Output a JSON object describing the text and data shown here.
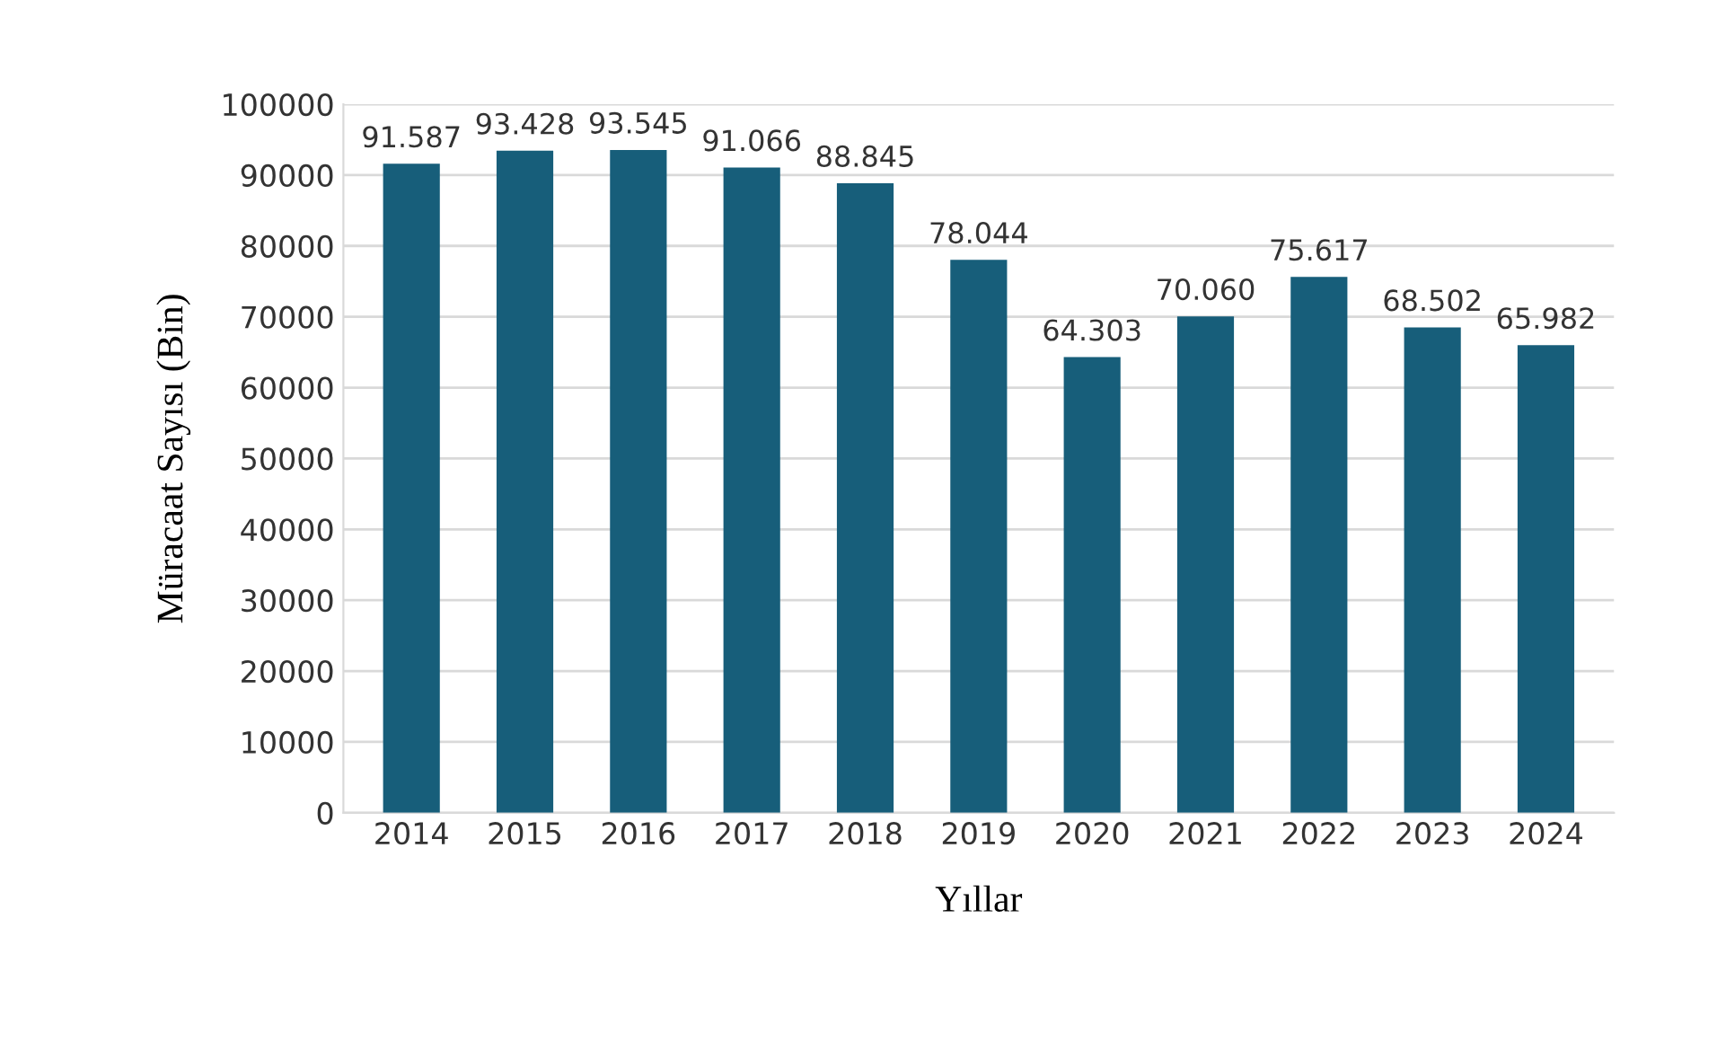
{
  "chart_data": {
    "type": "bar",
    "xlabel": "Yıllar",
    "ylabel": "Müracaat Sayısı (Bin)",
    "categories": [
      "2014",
      "2015",
      "2016",
      "2017",
      "2018",
      "2019",
      "2020",
      "2021",
      "2022",
      "2023",
      "2024"
    ],
    "values": [
      91587,
      93428,
      93545,
      91066,
      88845,
      78044,
      64303,
      70060,
      75617,
      68502,
      65982
    ],
    "value_labels": [
      "91.587",
      "93.428",
      "93.545",
      "91.066",
      "88.845",
      "78.044",
      "64.303",
      "70.060",
      "75.617",
      "68.502",
      "65.982"
    ],
    "color": "#175e7a",
    "ylim": [
      0,
      100000
    ],
    "yticks": [
      0,
      10000,
      20000,
      30000,
      40000,
      50000,
      60000,
      70000,
      80000,
      90000,
      100000
    ],
    "grid": "y"
  }
}
